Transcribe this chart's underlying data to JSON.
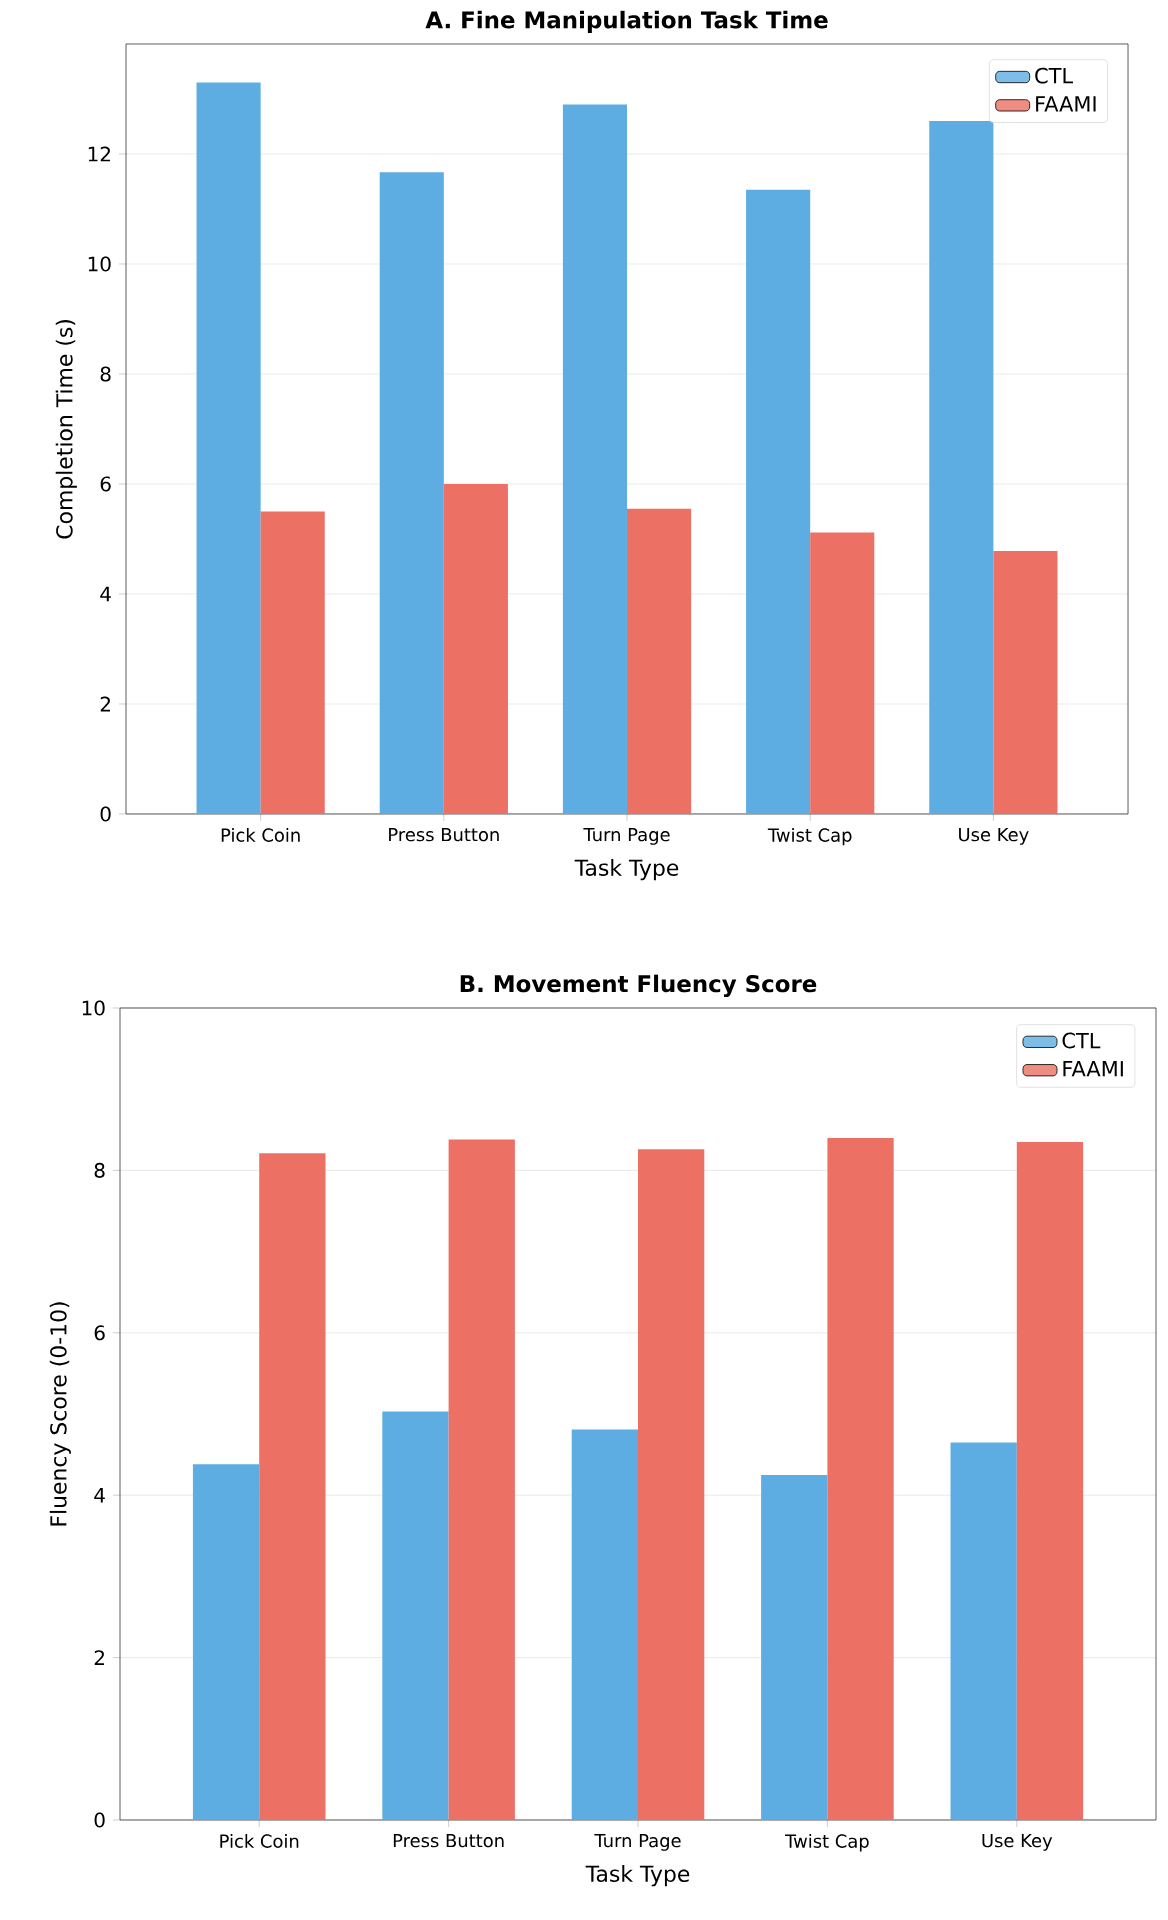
{
  "chart_data": [
    {
      "type": "bar",
      "title": "A. Fine Manipulation Task Time",
      "xlabel": "Task Type",
      "ylabel": "Completion Time (s)",
      "categories": [
        "Pick Coin",
        "Press Button",
        "Turn Page",
        "Twist Cap",
        "Use Key"
      ],
      "series": [
        {
          "name": "CTL",
          "color": "#5dade2",
          "values": [
            13.3,
            11.67,
            12.9,
            11.35,
            12.6
          ]
        },
        {
          "name": "FAAMI",
          "color": "#ec7063",
          "values": [
            5.5,
            6.0,
            5.55,
            5.12,
            4.78
          ]
        }
      ],
      "ylim": [
        0,
        14
      ],
      "yticks": [
        0,
        2,
        4,
        6,
        8,
        10,
        12
      ],
      "grid": "y",
      "legend": "top right"
    },
    {
      "type": "bar",
      "title": "B. Movement Fluency Score",
      "xlabel": "Task Type",
      "ylabel": "Fluency Score (0-10)",
      "categories": [
        "Pick Coin",
        "Press Button",
        "Turn Page",
        "Twist Cap",
        "Use Key"
      ],
      "series": [
        {
          "name": "CTL",
          "color": "#5dade2",
          "values": [
            4.38,
            5.03,
            4.81,
            4.25,
            4.65
          ]
        },
        {
          "name": "FAAMI",
          "color": "#ec7063",
          "values": [
            8.21,
            8.38,
            8.26,
            8.4,
            8.35
          ]
        }
      ],
      "ylim": [
        0,
        10
      ],
      "yticks": [
        0,
        2,
        4,
        6,
        8,
        10
      ],
      "grid": "y",
      "legend": "top right"
    }
  ]
}
